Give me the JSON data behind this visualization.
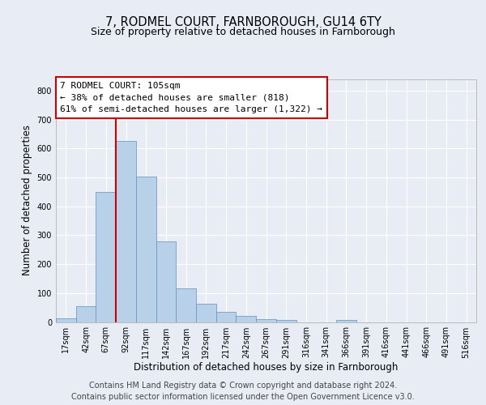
{
  "title": "7, RODMEL COURT, FARNBOROUGH, GU14 6TY",
  "subtitle": "Size of property relative to detached houses in Farnborough",
  "xlabel": "Distribution of detached houses by size in Farnborough",
  "ylabel": "Number of detached properties",
  "bar_values": [
    12,
    55,
    450,
    625,
    503,
    280,
    117,
    62,
    35,
    20,
    10,
    8,
    0,
    0,
    8,
    0,
    0,
    0,
    0,
    0,
    0
  ],
  "bin_labels": [
    "17sqm",
    "42sqm",
    "67sqm",
    "92sqm",
    "117sqm",
    "142sqm",
    "167sqm",
    "192sqm",
    "217sqm",
    "242sqm",
    "267sqm",
    "291sqm",
    "316sqm",
    "341sqm",
    "366sqm",
    "391sqm",
    "416sqm",
    "441sqm",
    "466sqm",
    "491sqm",
    "516sqm"
  ],
  "bar_color": "#b8d0e8",
  "bar_edge_color": "#6090c0",
  "vline_x": 3.0,
  "vline_color": "#cc0000",
  "annotation_text_line1": "7 RODMEL COURT: 105sqm",
  "annotation_text_line2": "← 38% of detached houses are smaller (818)",
  "annotation_text_line3": "61% of semi-detached houses are larger (1,322) →",
  "ylim": [
    0,
    840
  ],
  "yticks": [
    0,
    100,
    200,
    300,
    400,
    500,
    600,
    700,
    800
  ],
  "bg_color": "#e8edf5",
  "footer_text": "Contains HM Land Registry data © Crown copyright and database right 2024.\nContains public sector information licensed under the Open Government Licence v3.0.",
  "title_fontsize": 10.5,
  "subtitle_fontsize": 9,
  "tick_fontsize": 7,
  "ylabel_fontsize": 8.5,
  "xlabel_fontsize": 8.5,
  "annot_fontsize": 8,
  "footer_fontsize": 7
}
